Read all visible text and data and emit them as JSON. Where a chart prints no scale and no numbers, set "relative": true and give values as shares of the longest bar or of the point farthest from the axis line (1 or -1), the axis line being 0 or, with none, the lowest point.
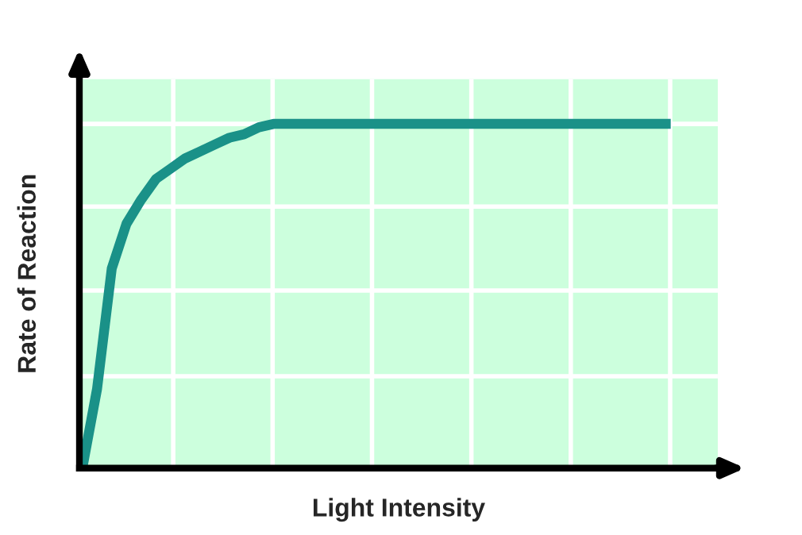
{
  "chart_data": {
    "type": "line",
    "xlabel": "Light Intensity",
    "ylabel": "Rate of Reaction",
    "relative": true,
    "grid": true,
    "categories": [
      null,
      null,
      null,
      null,
      null,
      null,
      null,
      null,
      null,
      null,
      null,
      null,
      null,
      null,
      null,
      null,
      null,
      null,
      null,
      null,
      null,
      null,
      null,
      null,
      null,
      null,
      null,
      null,
      null,
      null,
      null,
      null,
      null,
      null,
      null,
      null,
      null,
      null,
      null,
      null,
      null
    ],
    "series": [
      {
        "color": "#1a9188",
        "values": [
          0,
          0.23,
          0.58,
          0.71,
          0.78,
          0.84,
          0.87,
          0.9,
          0.92,
          0.94,
          0.96,
          0.97,
          0.99,
          1,
          1,
          1,
          1,
          1,
          1,
          1,
          1,
          1,
          1,
          1,
          1,
          1,
          1,
          1,
          1,
          1,
          1,
          1,
          1,
          1,
          1,
          1,
          1,
          1,
          1,
          1,
          1
        ]
      }
    ],
    "marker": "none",
    "line_style": "solid"
  }
}
